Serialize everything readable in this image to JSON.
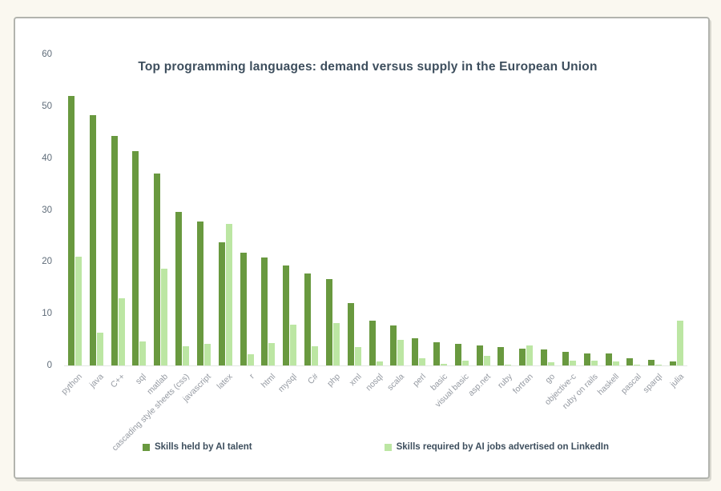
{
  "chart_data": {
    "type": "bar",
    "title": "Top programming languages: demand versus supply in the European Union",
    "categories": [
      "python",
      "java",
      "C++",
      "sql",
      "matlab",
      "cascading style sheets (css)",
      "javascript",
      "latex",
      "r",
      "html",
      "mysql",
      "C#",
      "php",
      "xml",
      "nosql",
      "scala",
      "perl",
      "basic",
      "visual basic",
      "asp.net",
      "ruby",
      "fortran",
      "go",
      "objective-c",
      "ruby on rails",
      "haskell",
      "pascal",
      "sparql",
      "julia"
    ],
    "series": [
      {
        "name": "Skills held by AI talent",
        "color": "#69993f",
        "values": [
          52,
          48.3,
          44.2,
          41.4,
          37,
          29.6,
          27.8,
          23.8,
          21.7,
          20.9,
          19.3,
          17.8,
          16.7,
          12,
          8.7,
          7.7,
          5.2,
          4.5,
          4.1,
          3.8,
          3.6,
          3.3,
          3.1,
          2.6,
          2.3,
          2.3,
          1.4,
          1.1,
          0.8
        ]
      },
      {
        "name": "Skills required by AI jobs advertised on LinkedIn",
        "color": "#bce6a3",
        "values": [
          21,
          6.3,
          12.9,
          4.6,
          18.6,
          3.7,
          4.2,
          27.3,
          2.2,
          4.3,
          7.9,
          3.7,
          8.2,
          3.6,
          0.7,
          4.9,
          1.4,
          0.3,
          1.0,
          1.9,
          0.2,
          3.8,
          0.6,
          0.9,
          0.9,
          0.8,
          0.2,
          0.1,
          8.6
        ]
      }
    ],
    "ylim": [
      0,
      60
    ],
    "yticks": [
      0,
      10,
      20,
      30,
      40,
      50,
      60
    ],
    "grid": false,
    "legend_position": "bottom",
    "xlabel": "",
    "ylabel": ""
  },
  "colors": {
    "page_background": "#faf8f0",
    "card_background": "#ffffff",
    "card_border": "#b2b4ae",
    "title_text": "#3d4e5d",
    "ytick_text": "#5f6c79",
    "xlabel_text": "#959aa2"
  }
}
